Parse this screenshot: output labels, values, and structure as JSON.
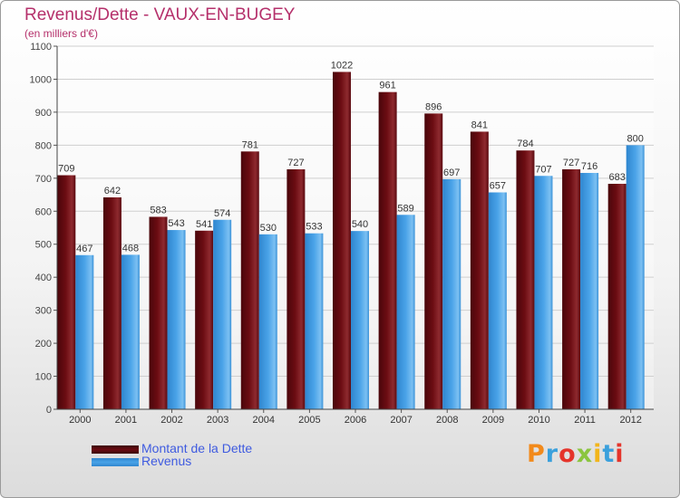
{
  "title": "Revenus/Dette - VAUX-EN-BUGEY",
  "subtitle": "(en milliers d'€)",
  "logo": "Proxiti",
  "logo_colors": [
    "#f28a1b",
    "#3aa0dc",
    "#e5342b",
    "#8bc53f",
    "#f2b51b",
    "#3aa0dc",
    "#e5342b"
  ],
  "colors": {
    "title": "#b5306b",
    "dette": "#6b0c12",
    "revenus": "#4aa3e8",
    "legend_text": "#3f5be0"
  },
  "chart_data": {
    "type": "bar",
    "categories": [
      "2000",
      "2001",
      "2002",
      "2003",
      "2004",
      "2005",
      "2006",
      "2007",
      "2008",
      "2009",
      "2010",
      "2011",
      "2012"
    ],
    "series": [
      {
        "name": "Montant de la Dette",
        "values": [
          709,
          642,
          583,
          541,
          781,
          727,
          1022,
          961,
          896,
          841,
          784,
          727,
          683
        ]
      },
      {
        "name": "Revenus",
        "values": [
          467,
          468,
          543,
          574,
          530,
          533,
          540,
          589,
          697,
          657,
          707,
          716,
          800
        ]
      }
    ],
    "ylim": [
      0,
      1100
    ],
    "yticks": [
      0,
      100,
      200,
      300,
      400,
      500,
      600,
      700,
      800,
      900,
      1000,
      1100
    ],
    "grid": true,
    "legend": "bottom-left"
  }
}
